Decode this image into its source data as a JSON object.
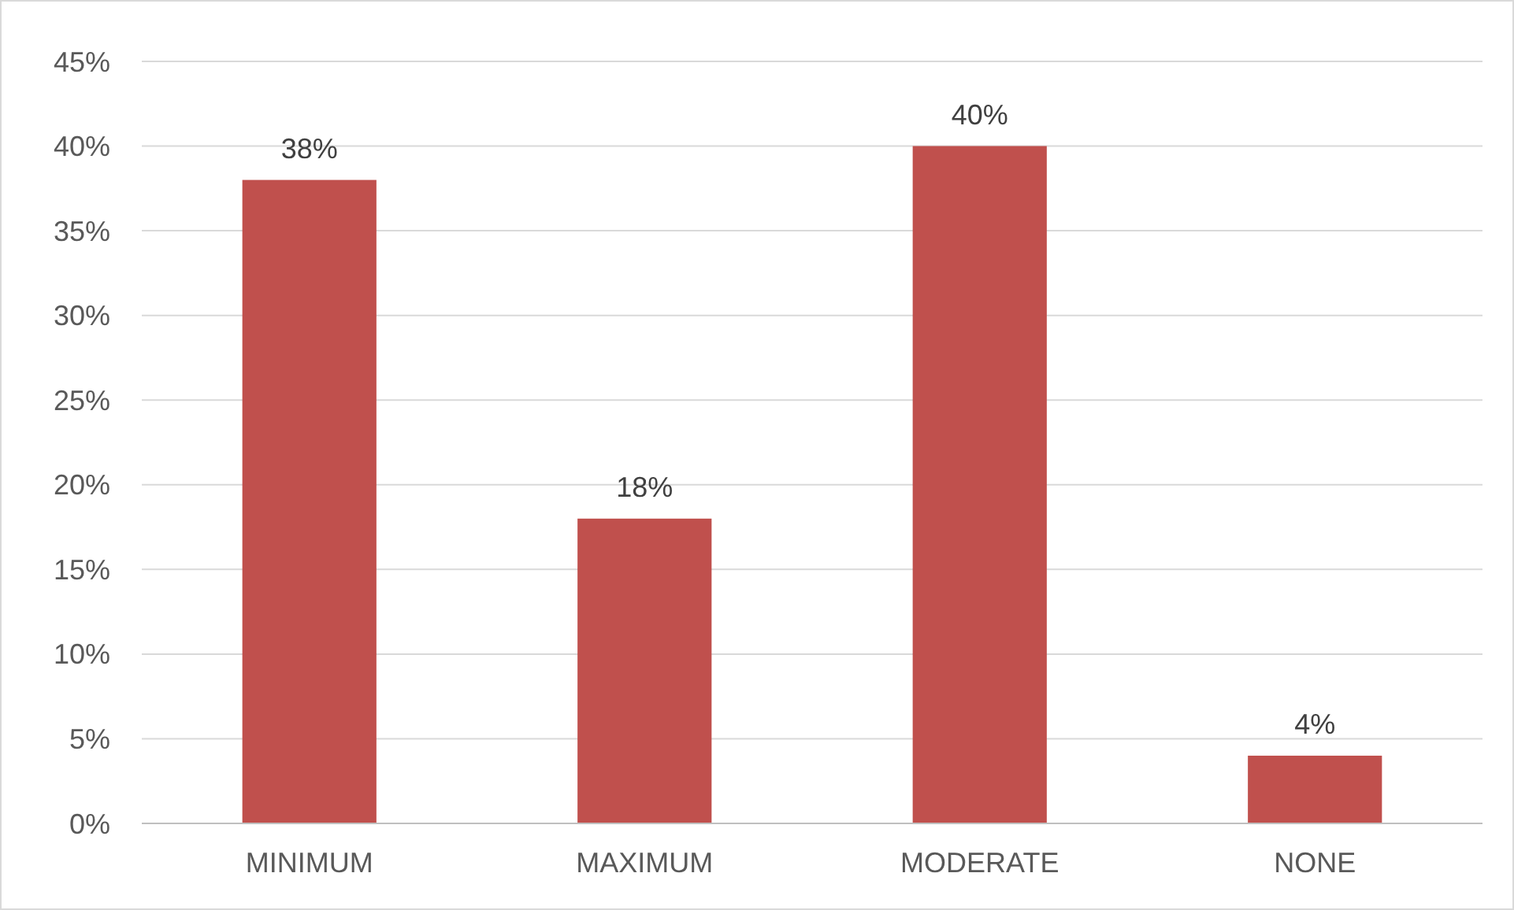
{
  "chart_data": {
    "type": "bar",
    "categories": [
      "MINIMUM",
      "MAXIMUM",
      "MODERATE",
      "NONE"
    ],
    "values": [
      38,
      18,
      40,
      4
    ],
    "value_labels": [
      "38%",
      "18%",
      "40%",
      "4%"
    ],
    "color": "#c0504d",
    "ylim": [
      0,
      45
    ],
    "yticks": [
      {
        "value": 0,
        "label": "0%"
      },
      {
        "value": 5,
        "label": "5%"
      },
      {
        "value": 10,
        "label": "10%"
      },
      {
        "value": 15,
        "label": "15%"
      },
      {
        "value": 20,
        "label": "20%"
      },
      {
        "value": 25,
        "label": "25%"
      },
      {
        "value": 30,
        "label": "30%"
      },
      {
        "value": 35,
        "label": "35%"
      },
      {
        "value": 40,
        "label": "40%"
      },
      {
        "value": 45,
        "label": "45%"
      }
    ],
    "grid": "y"
  }
}
